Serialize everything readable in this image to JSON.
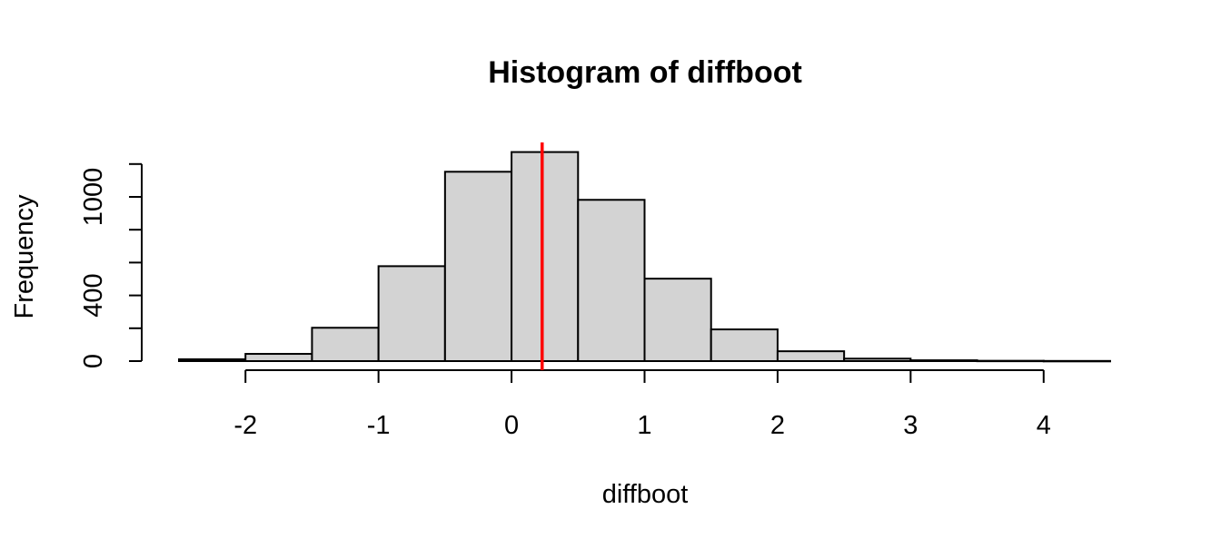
{
  "chart_data": {
    "type": "bar",
    "title": "Histogram of diffboot",
    "xlabel": "diffboot",
    "ylabel": "Frequency",
    "bins": [
      {
        "x0": -2.5,
        "x1": -2.0,
        "count": 11
      },
      {
        "x0": -2.0,
        "x1": -1.5,
        "count": 44
      },
      {
        "x0": -1.5,
        "x1": -1.0,
        "count": 203
      },
      {
        "x0": -1.0,
        "x1": -0.5,
        "count": 578
      },
      {
        "x0": -0.5,
        "x1": 0.0,
        "count": 1153
      },
      {
        "x0": 0.0,
        "x1": 0.5,
        "count": 1273
      },
      {
        "x0": 0.5,
        "x1": 1.0,
        "count": 982
      },
      {
        "x0": 1.0,
        "x1": 1.5,
        "count": 502
      },
      {
        "x0": 1.5,
        "x1": 2.0,
        "count": 193
      },
      {
        "x0": 2.0,
        "x1": 2.5,
        "count": 60
      },
      {
        "x0": 2.5,
        "x1": 3.0,
        "count": 15
      },
      {
        "x0": 3.0,
        "x1": 3.5,
        "count": 5
      },
      {
        "x0": 3.5,
        "x1": 4.0,
        "count": 2
      },
      {
        "x0": 4.0,
        "x1": 4.5,
        "count": 1
      }
    ],
    "xlim": [
      -2.5,
      4.5
    ],
    "ylim": [
      0,
      1300
    ],
    "x_ticks": [
      -2,
      -1,
      0,
      1,
      2,
      3,
      4
    ],
    "y_ticks_minor": [
      0,
      200,
      400,
      600,
      800,
      1000,
      1200
    ],
    "y_tick_labels": [
      {
        "value": 0,
        "label": "0"
      },
      {
        "value": 400,
        "label": "400"
      },
      {
        "value": 1000,
        "label": "1000"
      }
    ],
    "reference_line": {
      "x": 0.23,
      "color": "#ff0000"
    },
    "bar_color": "#d3d3d3",
    "grid": false,
    "legend": "none"
  }
}
